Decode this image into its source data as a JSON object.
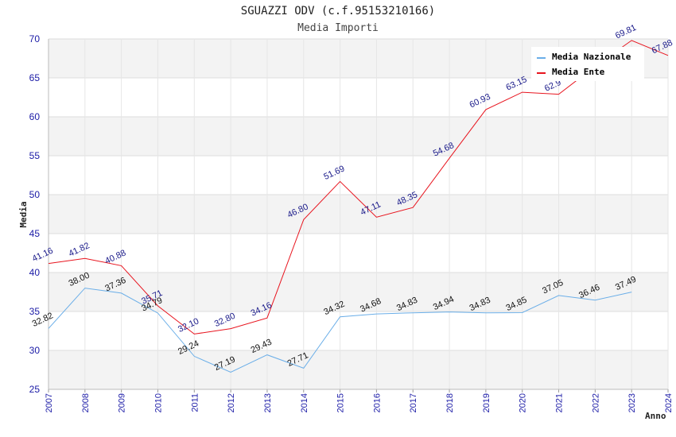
{
  "chart_data": {
    "type": "line",
    "title": "SGUAZZI ODV (c.f.95153210166)",
    "subtitle": "Media Importi",
    "xlabel": "Anno",
    "ylabel": "Media",
    "ylim": [
      25,
      70
    ],
    "yticks": [
      25,
      30,
      35,
      40,
      45,
      50,
      55,
      60,
      65,
      70
    ],
    "x": [
      2007,
      2008,
      2009,
      2010,
      2011,
      2012,
      2013,
      2014,
      2015,
      2016,
      2017,
      2018,
      2019,
      2020,
      2021,
      2022,
      2023,
      2024
    ],
    "legend_position": "top-right",
    "series": [
      {
        "name": "Media Nazionale",
        "color": "#6aaee8",
        "label_color": "#111111",
        "values": [
          32.82,
          38.0,
          37.36,
          34.79,
          29.24,
          27.19,
          29.43,
          27.71,
          34.32,
          34.68,
          34.83,
          34.94,
          34.83,
          34.85,
          37.05,
          36.46,
          37.49,
          null
        ],
        "labels": [
          "32.82",
          "38.00",
          "37.36",
          "34.79",
          "29.24",
          "27.19",
          "29.43",
          "27.71",
          "34.32",
          "34.68",
          "34.83",
          "34.94",
          "34.83",
          "34.85",
          "37.05",
          "36.46",
          "37.49",
          null
        ]
      },
      {
        "name": "Media Ente",
        "color": "#e8141e",
        "label_color": "#1a1a8a",
        "values": [
          41.16,
          41.82,
          40.88,
          35.71,
          32.1,
          32.8,
          34.16,
          46.8,
          51.69,
          47.11,
          48.35,
          54.68,
          60.93,
          63.15,
          62.9,
          66.5,
          69.81,
          67.88
        ],
        "labels": [
          "41.16",
          "41.82",
          "40.88",
          "35.71",
          "32.10",
          "32.80",
          "34.16",
          "46.80",
          "51.69",
          "47.11",
          "48.35",
          "54.68",
          "60.93",
          "63.15",
          "62.9",
          null,
          "69.81",
          "67.88"
        ]
      }
    ]
  }
}
